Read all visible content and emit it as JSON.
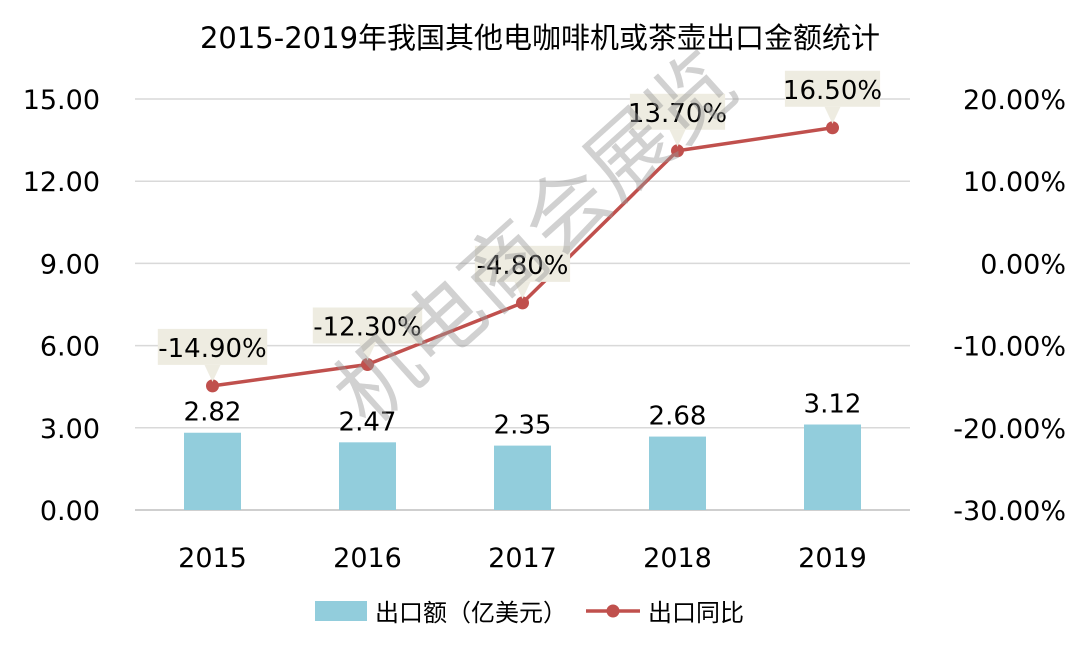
{
  "chart_data": {
    "type": "bar+line",
    "title": "2015-2019年我国其他电咖啡机或茶壶出口金额统计",
    "categories": [
      "2015",
      "2016",
      "2017",
      "2018",
      "2019"
    ],
    "series": [
      {
        "name": "出口额（亿美元）",
        "type": "bar",
        "axis": "left",
        "values": [
          2.82,
          2.47,
          2.35,
          2.68,
          3.12
        ],
        "labels": [
          "2.82",
          "2.47",
          "2.35",
          "2.68",
          "3.12"
        ],
        "color": "#92CDDC"
      },
      {
        "name": "出口同比",
        "type": "line",
        "axis": "right",
        "values": [
          -14.9,
          -12.3,
          -4.8,
          13.7,
          16.5
        ],
        "labels": [
          "-14.90%",
          "-12.30%",
          "-4.80%",
          "13.70%",
          "16.50%"
        ],
        "color": "#C0504D",
        "label_bg": "#EEECE1"
      }
    ],
    "y_left": {
      "ylim": [
        0,
        15
      ],
      "ticks": [
        0,
        3,
        6,
        9,
        12,
        15
      ],
      "tick_labels": [
        "0.00",
        "3.00",
        "6.00",
        "9.00",
        "12.00",
        "15.00"
      ]
    },
    "y_right": {
      "ylim": [
        -30,
        20
      ],
      "ticks": [
        -30,
        -20,
        -10,
        0,
        10,
        20
      ],
      "tick_labels": [
        "-30.00%",
        "-20.00%",
        "-10.00%",
        "0.00%",
        "10.00%",
        "20.00%"
      ]
    },
    "grid": true,
    "legend_position": "bottom",
    "watermark": "机电商会展览"
  }
}
